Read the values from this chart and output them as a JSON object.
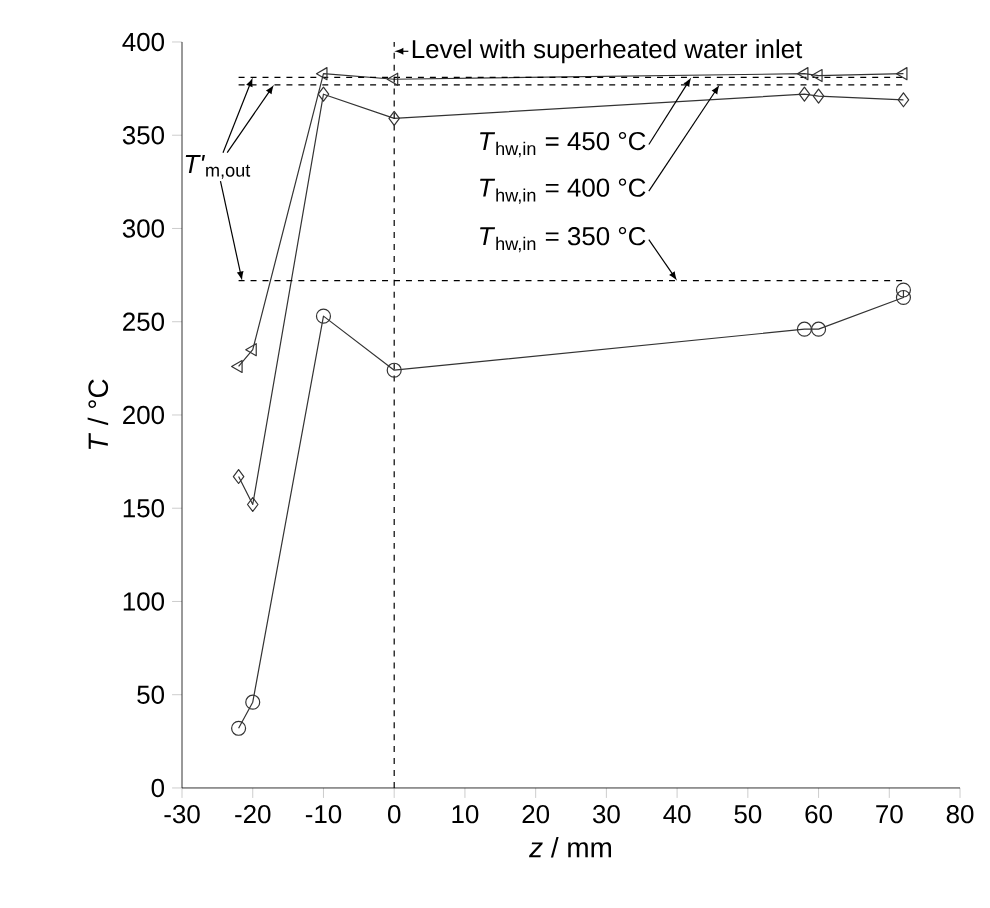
{
  "chart_data": {
    "type": "line",
    "xlabel": "*z* / mm",
    "ylabel": "*T* / °C",
    "xlim": [
      -30,
      80
    ],
    "xticks": [
      -30,
      -20,
      -10,
      0,
      10,
      20,
      30,
      40,
      50,
      60,
      70,
      80
    ],
    "ylim": [
      0,
      400
    ],
    "yticks": [
      0,
      50,
      100,
      150,
      200,
      250,
      300,
      350,
      400
    ],
    "grid": false,
    "line_style": "solid",
    "series": [
      {
        "color": "#333333",
        "marker": "circle",
        "x": [
          -22,
          -20,
          -10,
          0,
          58,
          60,
          72,
          72
        ],
        "values": [
          32,
          46,
          253,
          224,
          246,
          246,
          263,
          267
        ]
      },
      {
        "color": "#333333",
        "marker": "diamond",
        "x": [
          -22,
          -20,
          -10,
          0,
          58,
          60,
          72
        ],
        "values": [
          167,
          152,
          372,
          359,
          372,
          371,
          369
        ]
      },
      {
        "color": "#333333",
        "marker": "triangle",
        "x": [
          -22,
          -20,
          -10,
          0,
          58,
          60,
          72
        ],
        "values": [
          226,
          235,
          383,
          380,
          383,
          382,
          383
        ]
      }
    ],
    "ref_lines": [
      {
        "axis": "x",
        "value": 0,
        "label": "Level with superheated water inlet",
        "line_style": "dashed"
      },
      {
        "axis": "y",
        "value": 381,
        "line_style": "dashed"
      },
      {
        "axis": "y",
        "value": 377,
        "line_style": "dashed"
      },
      {
        "axis": "y",
        "value": 272,
        "line_style": "dashed"
      }
    ],
    "annotations": [
      {
        "text": "*T'*$_{m,out}$",
        "x": -20,
        "y": 381
      },
      {
        "text": "*T*$_{hw,in}$ = 450 °C",
        "x": 42,
        "y": 381
      },
      {
        "text": "*T*$_{hw,in}$ = 400 °C",
        "x": 46,
        "y": 377
      },
      {
        "text": "*T*$_{hw,in}$ = 350 °C",
        "x": 40,
        "y": 272
      }
    ]
  }
}
